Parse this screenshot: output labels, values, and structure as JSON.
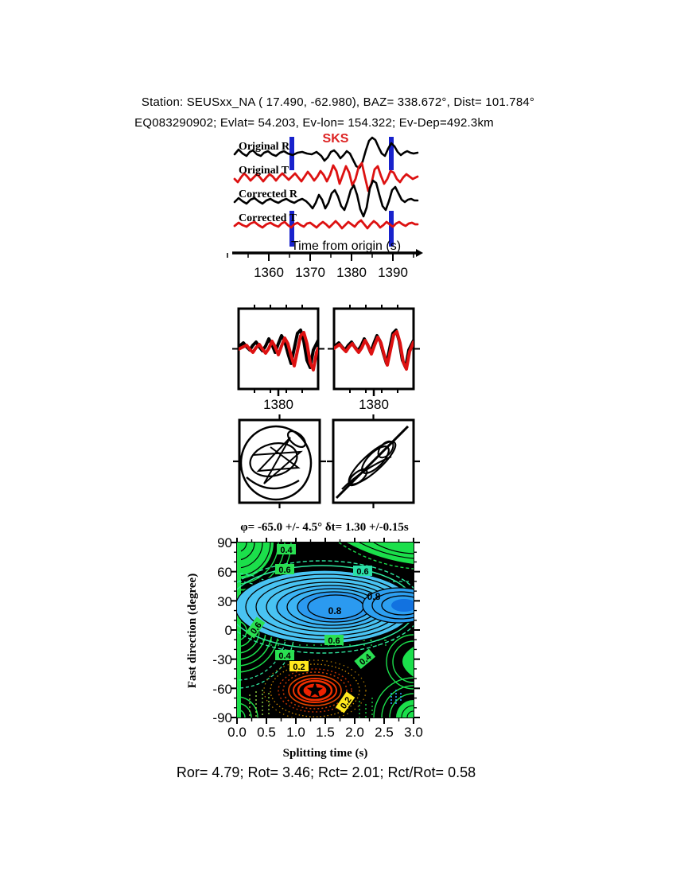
{
  "header": {
    "line1": "Station: SEUSxx_NA (  17.490,  -62.980), BAZ=  338.672°, Dist=  101.784°",
    "line2": "EQ083290902; Evlat=  54.203, Ev-lon= 154.322; Ev-Dep=492.3km"
  },
  "traces": {
    "phase_label": "SKS",
    "trace_labels": [
      "Original R",
      "Original T",
      "Corrected R",
      "Corrected T"
    ],
    "axis_label": "Time from origin (s)",
    "tick_labels": [
      "1360",
      "1370",
      "1380",
      "1390"
    ]
  },
  "wave_compare": {
    "tick_left": "1380",
    "tick_right": "1380"
  },
  "contour": {
    "title": "φ= -65.0 +/- 4.5° δt= 1.30 +/-0.15s",
    "ylabel": "Fast direction (degree)",
    "xlabel": "Splitting time (s)",
    "y_ticks": [
      "90",
      "60",
      "30",
      "0",
      "-30",
      "-60",
      "-90"
    ],
    "x_ticks": [
      "0.0",
      "0.5",
      "1.0",
      "1.5",
      "2.0",
      "2.5",
      "3.0"
    ],
    "contour_labels": [
      {
        "value": "0.4"
      },
      {
        "value": "0.6"
      },
      {
        "value": "0.6"
      },
      {
        "value": "0.8"
      },
      {
        "value": "0.8"
      },
      {
        "value": "0.6"
      },
      {
        "value": "0.6"
      },
      {
        "value": "0.4"
      },
      {
        "value": "0.2"
      },
      {
        "value": "0.4"
      },
      {
        "value": "0.2"
      }
    ]
  },
  "footer": {
    "stats": "Ror= 4.79; Rot= 3.46; Rct= 2.01; Rct/Rot= 0.58"
  },
  "colors": {
    "trace_red": "#dd1111",
    "window_bar_blue": "#1822cc",
    "phase_label_red": "#dd2222",
    "contour_green": "#1bdf4b",
    "contour_cyan_fill": "#49c3f2",
    "contour_deep_blue": "#1272e0",
    "contour_red": "#ee2200",
    "label_yellow": "#ffe81e"
  },
  "chart_data": [
    {
      "type": "line",
      "name": "seismogram-traces",
      "traces": [
        "Original R",
        "Original T",
        "Corrected R",
        "Corrected T"
      ],
      "trace_colors": [
        "black",
        "red",
        "black",
        "red"
      ],
      "phase_marker": "SKS",
      "xlabel": "Time from origin (s)",
      "x_ticks": [
        1360,
        1370,
        1380,
        1390
      ],
      "pick_window_s": [
        1365.5,
        1389.5
      ]
    },
    {
      "type": "line",
      "name": "waveform-overlay-panels",
      "panels": [
        {
          "x_tick": 1380
        },
        {
          "x_tick": 1380
        }
      ],
      "series_colors": [
        "black",
        "red"
      ]
    },
    {
      "type": "scatter",
      "name": "particle-motion-panels",
      "panels": [
        "original elliptical motion",
        "corrected linearized motion"
      ]
    },
    {
      "type": "heatmap",
      "name": "splitting-error-surface",
      "title": "φ= -65.0 +/- 4.5° δt= 1.30 +/-0.15s",
      "xlabel": "Splitting time (s)",
      "ylabel": "Fast direction (degree)",
      "xlim": [
        0.0,
        3.0
      ],
      "ylim": [
        -90,
        90
      ],
      "x_ticks": [
        0.0,
        0.5,
        1.0,
        1.5,
        2.0,
        2.5,
        3.0
      ],
      "y_ticks": [
        90,
        60,
        30,
        0,
        -30,
        -60,
        -90
      ],
      "contour_levels": [
        0.2,
        0.4,
        0.6,
        0.8
      ],
      "best_fit": {
        "fast_direction_deg": -65.0,
        "fast_direction_err_deg": 4.5,
        "splitting_time_s": 1.3,
        "splitting_time_err_s": 0.15
      },
      "star": {
        "x": 1.3,
        "y": -65
      }
    },
    {
      "type": "table",
      "name": "quality-stats",
      "values": {
        "Ror": 4.79,
        "Rot": 3.46,
        "Rct": 2.01,
        "Rct_over_Rot": 0.58
      }
    }
  ]
}
